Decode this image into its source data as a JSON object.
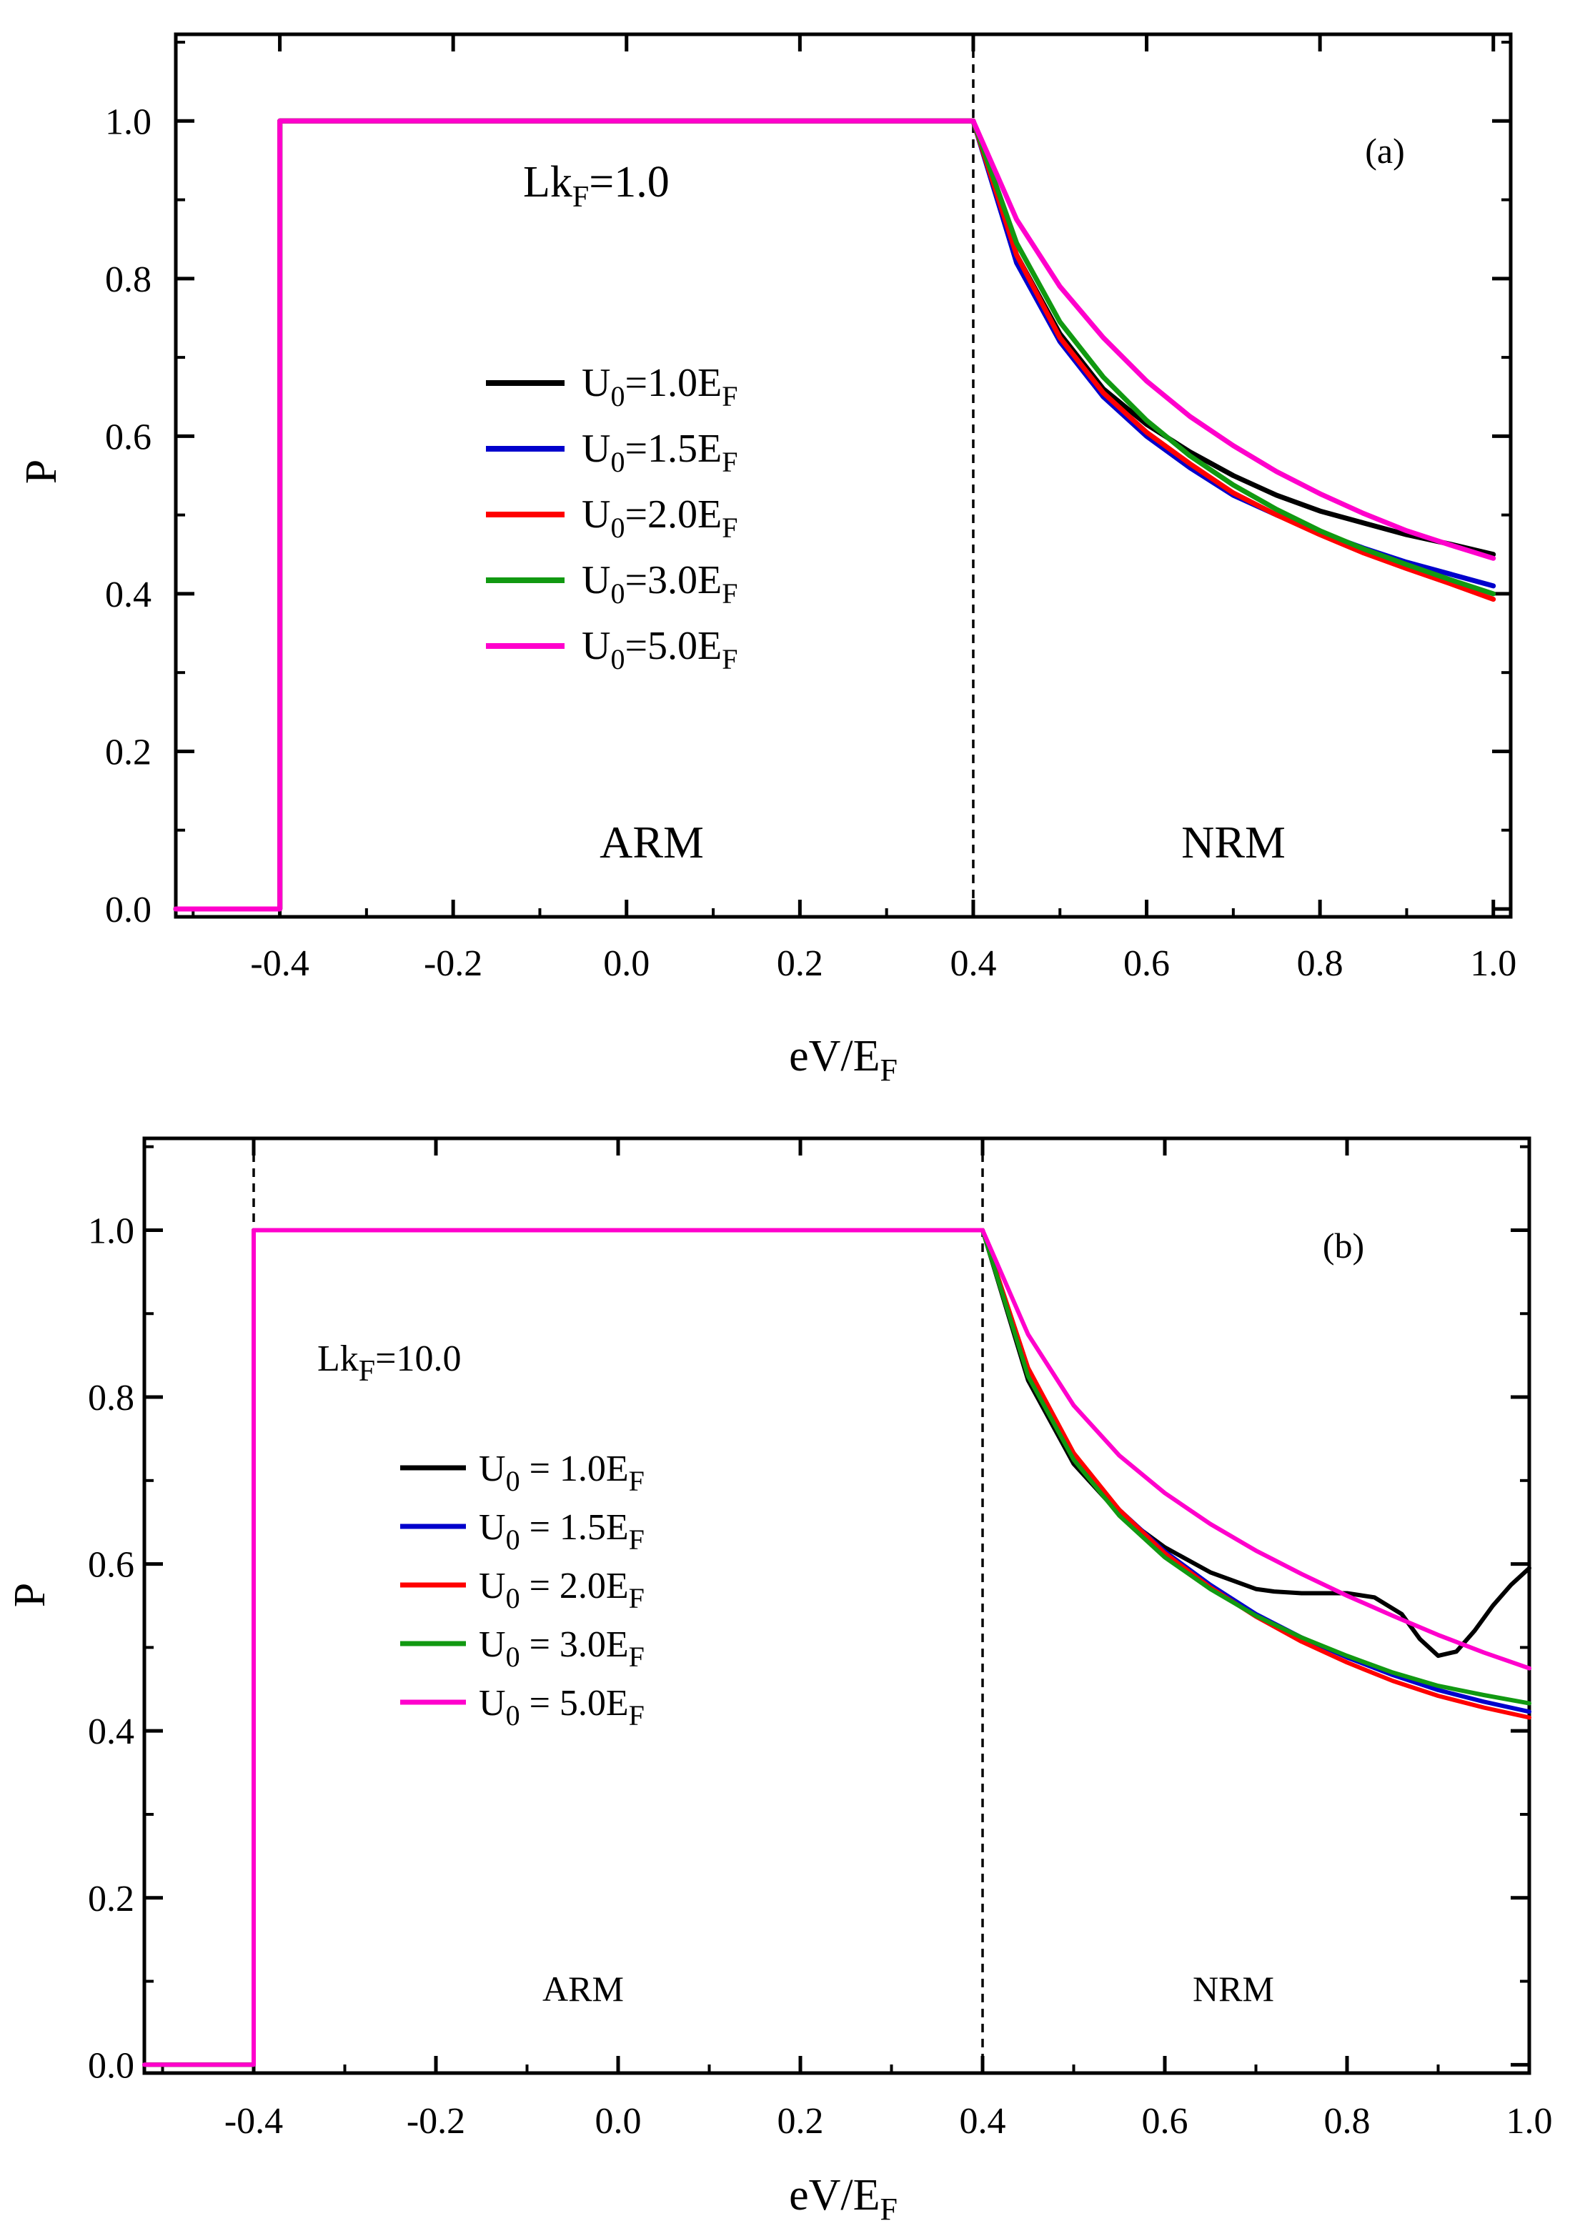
{
  "chart_data": [
    {
      "type": "line",
      "panel_label": "(a)",
      "annotation": {
        "main": "Lk",
        "sub": "F",
        "suffix": "=1.0"
      },
      "region_labels": {
        "left": "ARM",
        "right": "NRM"
      },
      "xlabel": {
        "main": "eV/E",
        "sub": "F"
      },
      "ylabel": "P",
      "xlim": [
        -0.52,
        1.02
      ],
      "ylim": [
        -0.01,
        1.11
      ],
      "xticks": [
        -0.4,
        -0.2,
        0.0,
        0.2,
        0.4,
        0.6,
        0.8,
        1.0
      ],
      "xtick_labels": [
        "-0.4",
        "-0.2",
        "0.0",
        "0.2",
        "0.4",
        "0.6",
        "0.8",
        "1.0"
      ],
      "yticks": [
        0.0,
        0.2,
        0.4,
        0.6,
        0.8,
        1.0
      ],
      "ytick_labels": [
        "0.0",
        "0.2",
        "0.4",
        "0.6",
        "0.8",
        "1.0"
      ],
      "vlines": [
        0.4
      ],
      "legend_position": "center-left",
      "series": [
        {
          "name": {
            "main": "U",
            "sub": "0",
            "mid": "=1.0E",
            "sub2": "F"
          },
          "color": "#000000",
          "x": [
            -0.52,
            -0.4,
            -0.4,
            0.4,
            0.45,
            0.5,
            0.55,
            0.6,
            0.65,
            0.7,
            0.75,
            0.8,
            0.85,
            0.9,
            0.95,
            1.0
          ],
          "y": [
            0.0,
            0.0,
            1.0,
            1.0,
            0.83,
            0.73,
            0.66,
            0.615,
            0.58,
            0.55,
            0.525,
            0.505,
            0.49,
            0.475,
            0.463,
            0.45
          ]
        },
        {
          "name": {
            "main": "U",
            "sub": "0",
            "mid": "=1.5E",
            "sub2": "F"
          },
          "color": "#0000cc",
          "x": [
            -0.52,
            -0.4,
            -0.4,
            0.4,
            0.45,
            0.5,
            0.55,
            0.6,
            0.65,
            0.7,
            0.75,
            0.8,
            0.85,
            0.9,
            0.95,
            1.0
          ],
          "y": [
            0.0,
            0.0,
            1.0,
            1.0,
            0.82,
            0.72,
            0.65,
            0.6,
            0.56,
            0.525,
            0.5,
            0.478,
            0.458,
            0.44,
            0.425,
            0.41
          ]
        },
        {
          "name": {
            "main": "U",
            "sub": "0",
            "mid": "=2.0E",
            "sub2": "F"
          },
          "color": "#ff0000",
          "x": [
            -0.52,
            -0.4,
            -0.4,
            0.4,
            0.45,
            0.5,
            0.55,
            0.6,
            0.65,
            0.7,
            0.75,
            0.8,
            0.85,
            0.9,
            0.95,
            1.0
          ],
          "y": [
            0.0,
            0.0,
            1.0,
            1.0,
            0.83,
            0.725,
            0.655,
            0.605,
            0.565,
            0.528,
            0.5,
            0.475,
            0.452,
            0.432,
            0.413,
            0.393
          ]
        },
        {
          "name": {
            "main": "U",
            "sub": "0",
            "mid": "=3.0E",
            "sub2": "F"
          },
          "color": "#119911",
          "x": [
            -0.52,
            -0.4,
            -0.4,
            0.4,
            0.45,
            0.5,
            0.55,
            0.6,
            0.65,
            0.7,
            0.75,
            0.8,
            0.85,
            0.9,
            0.95,
            1.0
          ],
          "y": [
            0.0,
            0.0,
            1.0,
            1.0,
            0.845,
            0.745,
            0.675,
            0.62,
            0.575,
            0.538,
            0.507,
            0.48,
            0.457,
            0.437,
            0.418,
            0.4
          ]
        },
        {
          "name": {
            "main": "U",
            "sub": "0",
            "mid": "=5.0E",
            "sub2": "F"
          },
          "color": "#ff00cc",
          "x": [
            -0.52,
            -0.4,
            -0.4,
            0.4,
            0.45,
            0.5,
            0.55,
            0.6,
            0.65,
            0.7,
            0.75,
            0.8,
            0.85,
            0.9,
            0.95,
            1.0
          ],
          "y": [
            0.0,
            0.0,
            1.0,
            1.0,
            0.875,
            0.79,
            0.725,
            0.67,
            0.625,
            0.588,
            0.555,
            0.527,
            0.502,
            0.48,
            0.462,
            0.445
          ]
        }
      ]
    },
    {
      "type": "line",
      "panel_label": "(b)",
      "annotation": {
        "main": "Lk",
        "sub": "F",
        "suffix": "=10.0"
      },
      "region_labels": {
        "left": "ARM",
        "right": "NRM"
      },
      "xlabel": {
        "main": "eV/E",
        "sub": "F"
      },
      "ylabel": "P",
      "xlim": [
        -0.52,
        1.0
      ],
      "ylim": [
        -0.01,
        1.11
      ],
      "xticks": [
        -0.4,
        -0.2,
        0.0,
        0.2,
        0.4,
        0.6,
        0.8,
        1.0
      ],
      "xtick_labels": [
        "-0.4",
        "-0.2",
        "0.0",
        "0.2",
        "0.4",
        "0.6",
        "0.8",
        "1.0"
      ],
      "yticks": [
        0.0,
        0.2,
        0.4,
        0.6,
        0.8,
        1.0
      ],
      "ytick_labels": [
        "0.0",
        "0.2",
        "0.4",
        "0.6",
        "0.8",
        "1.0"
      ],
      "vlines": [
        -0.4,
        0.4
      ],
      "legend_position": "center-left",
      "series": [
        {
          "name": {
            "main": "U",
            "sub": "0",
            "mid": " = 1.0E",
            "sub2": "F"
          },
          "color": "#000000",
          "x": [
            -0.52,
            -0.4,
            -0.4,
            0.4,
            0.45,
            0.5,
            0.55,
            0.6,
            0.65,
            0.7,
            0.72,
            0.75,
            0.8,
            0.83,
            0.86,
            0.88,
            0.9,
            0.92,
            0.94,
            0.96,
            0.98,
            1.0
          ],
          "y": [
            0.0,
            0.0,
            1.0,
            1.0,
            0.82,
            0.72,
            0.66,
            0.62,
            0.59,
            0.57,
            0.567,
            0.565,
            0.565,
            0.56,
            0.54,
            0.51,
            0.49,
            0.495,
            0.52,
            0.55,
            0.575,
            0.595
          ]
        },
        {
          "name": {
            "main": "U",
            "sub": "0",
            "mid": " = 1.5E",
            "sub2": "F"
          },
          "color": "#0000cc",
          "x": [
            -0.52,
            -0.4,
            -0.4,
            0.4,
            0.45,
            0.5,
            0.55,
            0.6,
            0.65,
            0.7,
            0.75,
            0.8,
            0.85,
            0.9,
            0.95,
            1.0
          ],
          "y": [
            0.0,
            0.0,
            1.0,
            1.0,
            0.83,
            0.73,
            0.665,
            0.615,
            0.575,
            0.54,
            0.512,
            0.488,
            0.467,
            0.449,
            0.435,
            0.423
          ]
        },
        {
          "name": {
            "main": "U",
            "sub": "0",
            "mid": " = 2.0E",
            "sub2": "F"
          },
          "color": "#ff0000",
          "x": [
            -0.52,
            -0.4,
            -0.4,
            0.4,
            0.45,
            0.5,
            0.55,
            0.6,
            0.65,
            0.7,
            0.75,
            0.8,
            0.85,
            0.9,
            0.95,
            1.0
          ],
          "y": [
            0.0,
            0.0,
            1.0,
            1.0,
            0.835,
            0.733,
            0.665,
            0.613,
            0.572,
            0.537,
            0.507,
            0.482,
            0.46,
            0.442,
            0.428,
            0.416
          ]
        },
        {
          "name": {
            "main": "U",
            "sub": "0",
            "mid": " = 3.0E",
            "sub2": "F"
          },
          "color": "#119911",
          "x": [
            -0.52,
            -0.4,
            -0.4,
            0.4,
            0.45,
            0.5,
            0.55,
            0.6,
            0.65,
            0.7,
            0.75,
            0.8,
            0.85,
            0.9,
            0.95,
            1.0
          ],
          "y": [
            0.0,
            0.0,
            1.0,
            1.0,
            0.825,
            0.725,
            0.658,
            0.608,
            0.57,
            0.538,
            0.512,
            0.49,
            0.47,
            0.454,
            0.443,
            0.433
          ]
        },
        {
          "name": {
            "main": "U",
            "sub": "0",
            "mid": " = 5.0E",
            "sub2": "F"
          },
          "color": "#ff00cc",
          "x": [
            -0.52,
            -0.4,
            -0.4,
            0.4,
            0.45,
            0.5,
            0.55,
            0.6,
            0.65,
            0.7,
            0.75,
            0.8,
            0.85,
            0.9,
            0.95,
            1.0
          ],
          "y": [
            0.0,
            0.0,
            1.0,
            1.0,
            0.875,
            0.79,
            0.73,
            0.685,
            0.648,
            0.616,
            0.588,
            0.562,
            0.538,
            0.515,
            0.494,
            0.475
          ]
        }
      ]
    }
  ]
}
